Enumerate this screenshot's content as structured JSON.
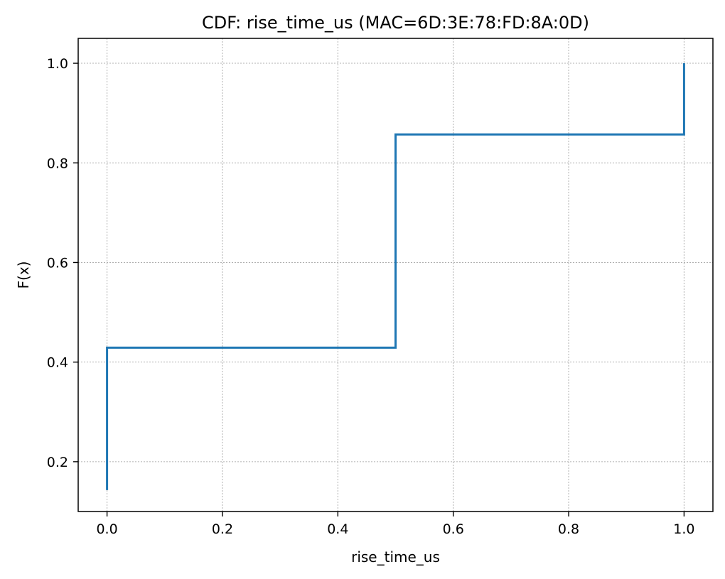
{
  "chart_data": {
    "type": "line",
    "step": "post",
    "title": "CDF: rise_time_us (MAC=6D:3E:78:FD:8A:0D)",
    "xlabel": "rise_time_us",
    "ylabel": "F(x)",
    "xlim": [
      -0.05,
      1.05
    ],
    "ylim": [
      0.1,
      1.05
    ],
    "xticks": [
      0.0,
      0.2,
      0.4,
      0.6,
      0.8,
      1.0
    ],
    "xtick_labels": [
      "0.0",
      "0.2",
      "0.4",
      "0.6",
      "0.8",
      "1.0"
    ],
    "yticks": [
      0.2,
      0.4,
      0.6,
      0.8,
      1.0
    ],
    "ytick_labels": [
      "0.2",
      "0.4",
      "0.6",
      "0.8",
      "1.0"
    ],
    "grid": true,
    "legend": "none",
    "series": [
      {
        "color": "#1f77b4",
        "x": [
          0.0,
          0.0,
          0.5,
          0.5,
          1.0,
          1.0
        ],
        "y": [
          0.143,
          0.429,
          0.429,
          0.857,
          0.857,
          1.0
        ]
      }
    ]
  }
}
